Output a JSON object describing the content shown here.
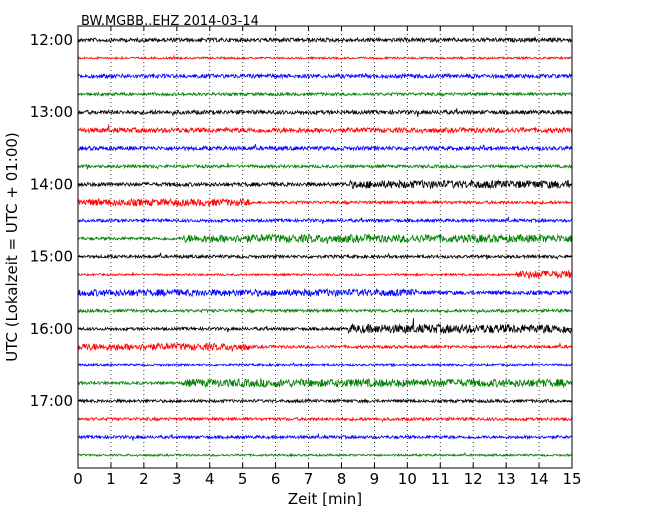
{
  "chart_data": {
    "type": "line",
    "title": "BW.MGBB..EHZ 2014-03-14",
    "xlabel": "Zeit  [min]",
    "ylabel": "UTC (Lokalzeit = UTC + 01:00)",
    "xlim": [
      0,
      15
    ],
    "x_ticks": [
      "0",
      "1",
      "2",
      "3",
      "4",
      "5",
      "6",
      "7",
      "8",
      "9",
      "10",
      "11",
      "12",
      "13",
      "14",
      "15"
    ],
    "y_tick_labels": [
      "12:00",
      "13:00",
      "14:00",
      "15:00",
      "16:00",
      "17:00"
    ],
    "grid": "vertical dotted",
    "trace_colors": [
      "#000000",
      "#ff0000",
      "#0000ff",
      "#008000"
    ],
    "traces": [
      {
        "time": "12:00",
        "color": "#000000",
        "amplitude": 2
      },
      {
        "time": "12:15",
        "color": "#ff0000",
        "amplitude": 1
      },
      {
        "time": "12:30",
        "color": "#0000ff",
        "amplitude": 2
      },
      {
        "time": "12:45",
        "color": "#008000",
        "amplitude": 1.5
      },
      {
        "time": "13:00",
        "color": "#000000",
        "amplitude": 2
      },
      {
        "time": "13:15",
        "color": "#ff0000",
        "amplitude": 2.5
      },
      {
        "time": "13:30",
        "color": "#0000ff",
        "amplitude": 2
      },
      {
        "time": "13:45",
        "color": "#008000",
        "amplitude": 1.5
      },
      {
        "time": "14:00",
        "color": "#000000",
        "amplitude": 2,
        "burst": [
          8.2,
          15,
          4
        ]
      },
      {
        "time": "14:15",
        "color": "#ff0000",
        "amplitude": 1.5,
        "burst": [
          0,
          5.2,
          3.5
        ]
      },
      {
        "time": "14:30",
        "color": "#0000ff",
        "amplitude": 1.5
      },
      {
        "time": "14:45",
        "color": "#008000",
        "amplitude": 1.5,
        "burst": [
          3.2,
          15,
          4
        ]
      },
      {
        "time": "15:00",
        "color": "#000000",
        "amplitude": 1.5
      },
      {
        "time": "15:15",
        "color": "#ff0000",
        "amplitude": 1,
        "burst": [
          13.3,
          15,
          4
        ]
      },
      {
        "time": "15:30",
        "color": "#0000ff",
        "amplitude": 2,
        "burst": [
          0,
          10.3,
          3.5
        ]
      },
      {
        "time": "15:45",
        "color": "#008000",
        "amplitude": 1.5
      },
      {
        "time": "16:00",
        "color": "#000000",
        "amplitude": 1.5,
        "burst": [
          8.2,
          15,
          4.5
        ]
      },
      {
        "time": "16:15",
        "color": "#ff0000",
        "amplitude": 1.5,
        "burst": [
          0,
          5.2,
          3.5
        ]
      },
      {
        "time": "16:30",
        "color": "#0000ff",
        "amplitude": 1
      },
      {
        "time": "16:45",
        "color": "#008000",
        "amplitude": 1.5,
        "burst": [
          3.2,
          15,
          4
        ]
      },
      {
        "time": "17:00",
        "color": "#000000",
        "amplitude": 1.5
      },
      {
        "time": "17:15",
        "color": "#ff0000",
        "amplitude": 1.5
      },
      {
        "time": "17:30",
        "color": "#0000ff",
        "amplitude": 1.5
      },
      {
        "time": "17:45",
        "color": "#008000",
        "amplitude": 1
      }
    ]
  }
}
